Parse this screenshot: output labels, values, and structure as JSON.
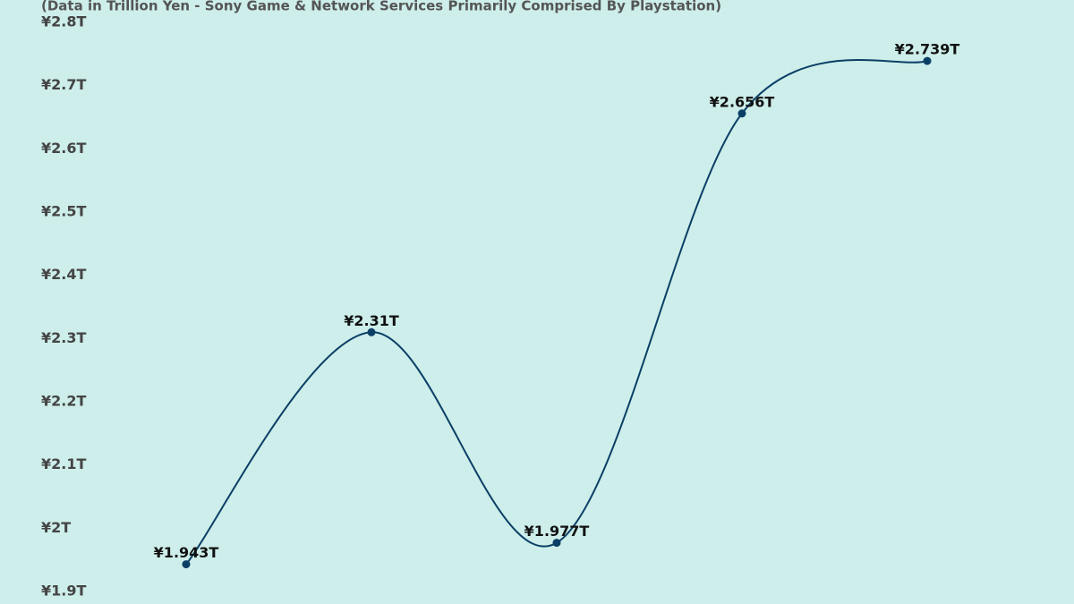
{
  "chart_data": {
    "type": "line",
    "subtitle": "(Data in Trillion Yen - Sony Game & Network Services Primarily Comprised By Playstation)",
    "categories": [
      null,
      null,
      null,
      null,
      null
    ],
    "values": [
      1.943,
      2.31,
      1.977,
      2.656,
      2.739
    ],
    "value_labels": [
      "¥1.943T",
      "¥2.31T",
      "¥1.977T",
      "¥2.656T",
      "¥2.739T"
    ],
    "color": "#0b3f66",
    "ylim": [
      1.9,
      2.8
    ],
    "yticks": [
      {
        "value": 1.9,
        "label": "¥1.9T"
      },
      {
        "value": 2.0,
        "label": "¥2T"
      },
      {
        "value": 2.1,
        "label": "¥2.1T"
      },
      {
        "value": 2.2,
        "label": "¥2.2T"
      },
      {
        "value": 2.3,
        "label": "¥2.3T"
      },
      {
        "value": 2.4,
        "label": "¥2.4T"
      },
      {
        "value": 2.5,
        "label": "¥2.5T"
      },
      {
        "value": 2.6,
        "label": "¥2.6T"
      },
      {
        "value": 2.7,
        "label": "¥2.7T"
      },
      {
        "value": 2.8,
        "label": "¥2.8T"
      }
    ],
    "grid": false
  }
}
